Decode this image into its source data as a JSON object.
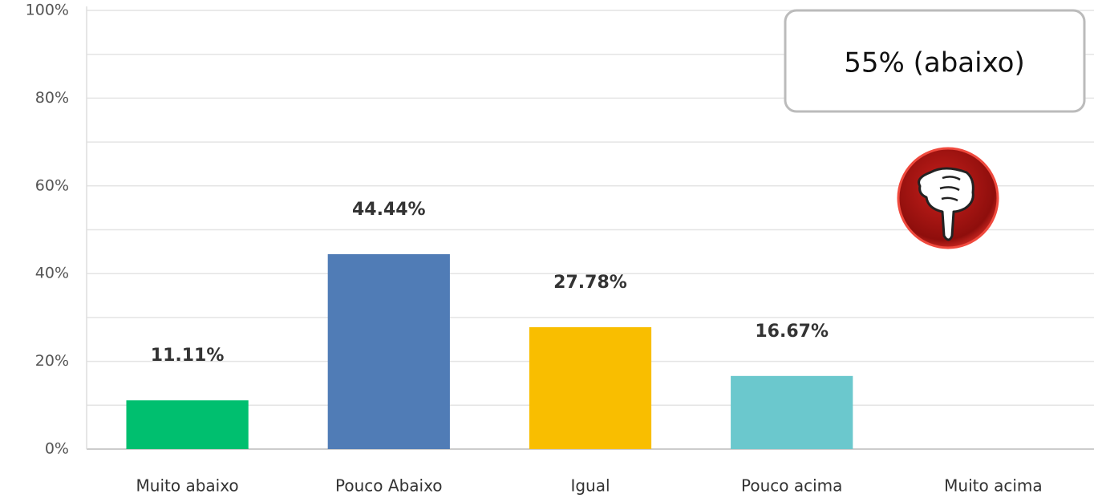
{
  "chart_data": {
    "type": "bar",
    "categories": [
      "Muito abaixo",
      "Pouco Abaixo",
      "Igual",
      "Pouco acima",
      "Muito acima"
    ],
    "values": [
      11.11,
      44.44,
      27.78,
      16.67,
      0
    ],
    "value_labels": [
      "11.11%",
      "44.44%",
      "27.78%",
      "16.67%",
      null
    ],
    "colors": [
      "#00bf6f",
      "#507cb6",
      "#f9be00",
      "#6bc8cd",
      null
    ],
    "ylim": [
      0,
      100
    ],
    "yticks": [
      {
        "value": 0,
        "label": "0%"
      },
      {
        "value": 20,
        "label": "20%"
      },
      {
        "value": 40,
        "label": "40%"
      },
      {
        "value": 60,
        "label": "60%"
      },
      {
        "value": 80,
        "label": "80%"
      },
      {
        "value": 100,
        "label": "100%"
      }
    ],
    "minor_yticks": [
      10,
      30,
      50,
      70,
      90
    ],
    "grid": true,
    "annotation": "55% (abaixo)"
  }
}
